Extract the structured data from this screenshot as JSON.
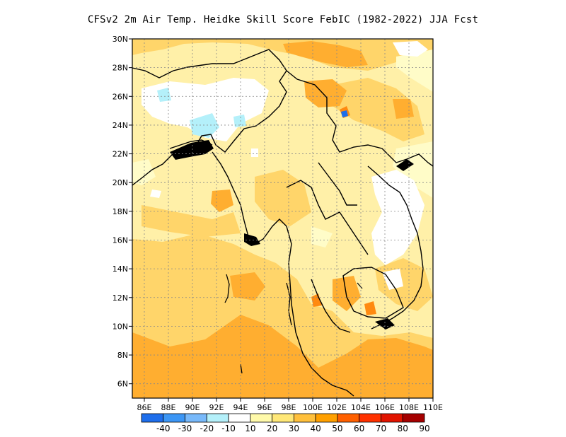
{
  "title": "CFSv2  2m Air Temp. Heidke Skill Score FebIC (1982-2022) JJA Fcst",
  "chart_data": {
    "type": "heatmap",
    "title": "CFSv2  2m Air Temp. Heidke Skill Score FebIC (1982-2022) JJA Fcst",
    "x_ticks": [
      "86E",
      "88E",
      "90E",
      "92E",
      "94E",
      "96E",
      "98E",
      "100E",
      "102E",
      "104E",
      "106E",
      "108E",
      "110E"
    ],
    "y_ticks": [
      "30N",
      "28N",
      "26N",
      "24N",
      "22N",
      "20N",
      "18N",
      "16N",
      "14N",
      "12N",
      "10N",
      "8N",
      "6N"
    ],
    "xlim": [
      85,
      110
    ],
    "ylim": [
      5,
      30
    ],
    "grid": true,
    "colorbar": {
      "labels": [
        "-40",
        "-30",
        "-20",
        "-10",
        "10",
        "20",
        "30",
        "40",
        "50",
        "60",
        "70",
        "80",
        "90"
      ],
      "colors": [
        "#1e6eeb",
        "#3c96f5",
        "#78b9fa",
        "#b4f0fa",
        "#ffffff",
        "#fffaaa",
        "#ffe878",
        "#ffc03c",
        "#ffa000",
        "#ff6000",
        "#ff3200",
        "#e11400",
        "#a50000"
      ]
    }
  }
}
